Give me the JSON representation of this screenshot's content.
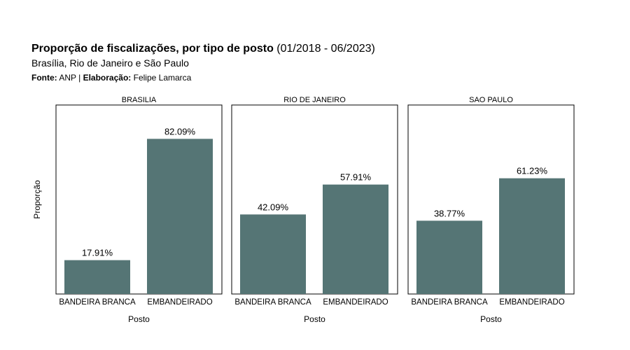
{
  "header": {
    "title_bold": "Proporção de fiscalizações, por tipo de posto",
    "title_period": "(01/2018 - 06/2023)",
    "subtitle": "Brasília, Rio de Janeiro e São Paulo",
    "source_label": "Fonte:",
    "source_value": "ANP |",
    "author_label": "Elaboração:",
    "author_value": "Felipe Lamarca"
  },
  "chart_data": {
    "type": "bar",
    "ylabel": "Proporção",
    "xlabel": "Posto",
    "ylim": [
      0,
      100
    ],
    "bar_color": "#557575",
    "categories": [
      "BANDEIRA BRANCA",
      "EMBANDEIRADO"
    ],
    "panels": [
      {
        "title": "BRASILIA",
        "values": [
          17.91,
          82.09
        ],
        "labels": [
          "17.91%",
          "82.09%"
        ]
      },
      {
        "title": "RIO DE JANEIRO",
        "values": [
          42.09,
          57.91
        ],
        "labels": [
          "42.09%",
          "57.91%"
        ]
      },
      {
        "title": "SAO PAULO",
        "values": [
          38.77,
          61.23
        ],
        "labels": [
          "38.77%",
          "61.23%"
        ]
      }
    ]
  }
}
